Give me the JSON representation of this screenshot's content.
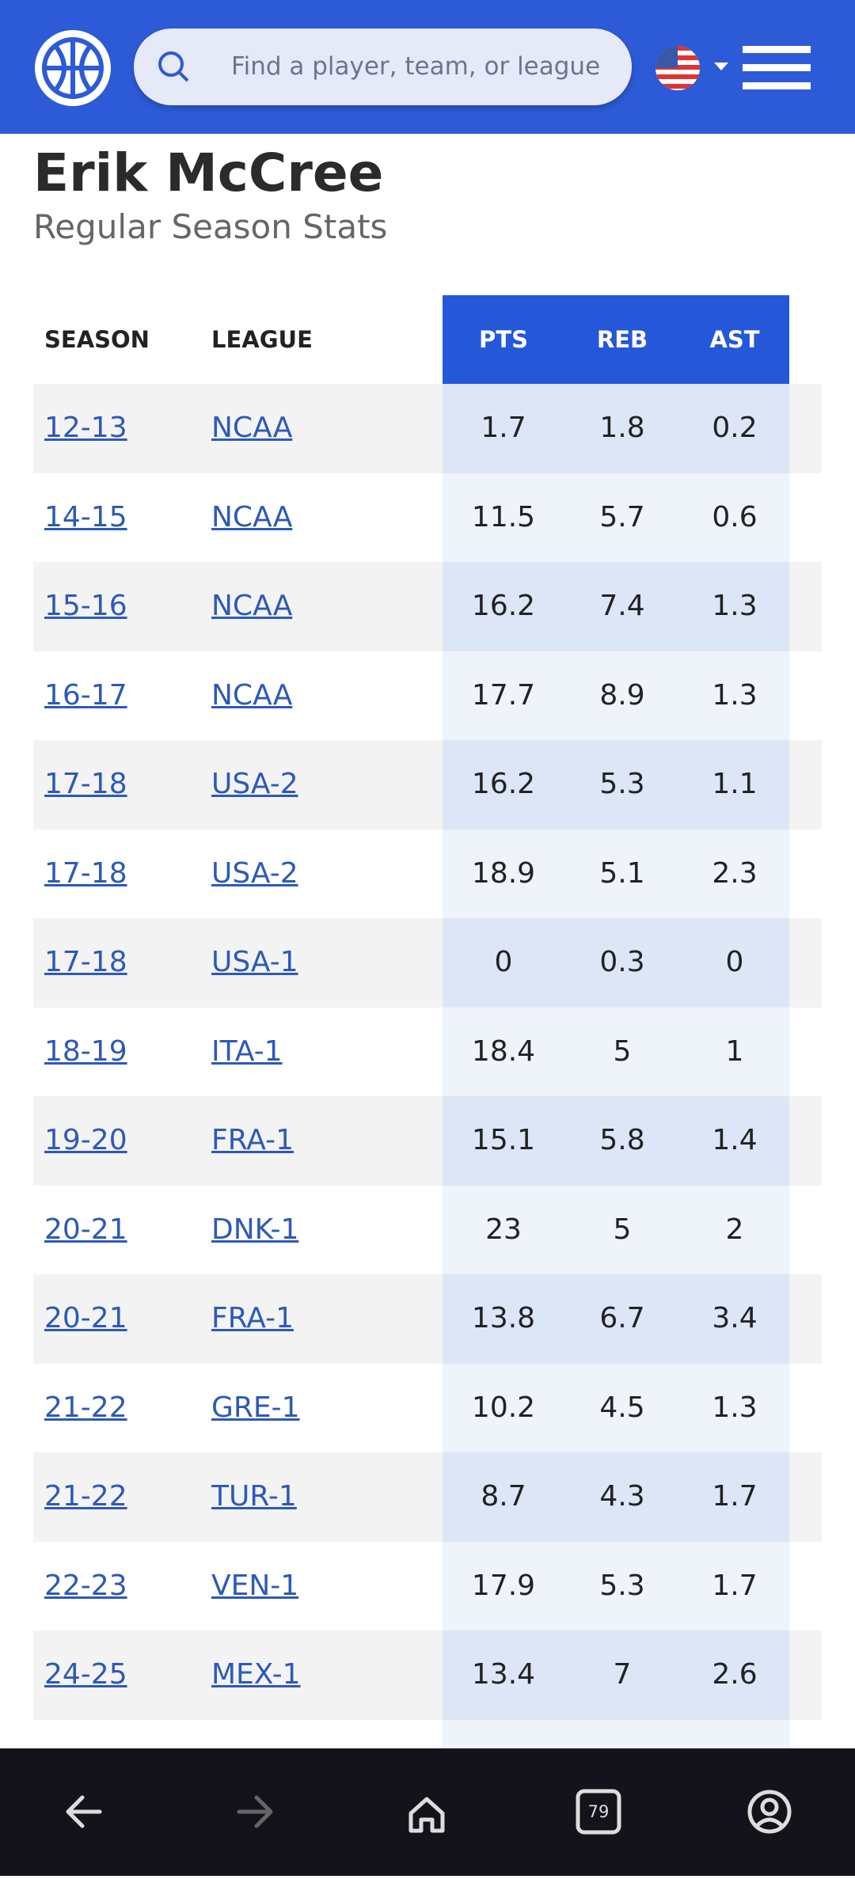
{
  "header": {
    "search_placeholder": "Find a player, team, or league"
  },
  "player": {
    "name": "Erik McCree",
    "subtitle": "Regular Season Stats"
  },
  "table": {
    "columns": [
      "SEASON",
      "LEAGUE",
      "PTS",
      "REB",
      "AST"
    ],
    "rows": [
      [
        "12-13",
        "NCAA",
        1.7,
        1.8,
        0.2
      ],
      [
        "14-15",
        "NCAA",
        11.5,
        5.7,
        0.6
      ],
      [
        "15-16",
        "NCAA",
        16.2,
        7.4,
        1.3
      ],
      [
        "16-17",
        "NCAA",
        17.7,
        8.9,
        1.3
      ],
      [
        "17-18",
        "USA-2",
        16.2,
        5.3,
        1.1
      ],
      [
        "17-18",
        "USA-2",
        18.9,
        5.1,
        2.3
      ],
      [
        "17-18",
        "USA-1",
        0,
        0.3,
        0
      ],
      [
        "18-19",
        "ITA-1",
        18.4,
        5,
        1
      ],
      [
        "19-20",
        "FRA-1",
        15.1,
        5.8,
        1.4
      ],
      [
        "20-21",
        "DNK-1",
        23,
        5,
        2
      ],
      [
        "20-21",
        "FRA-1",
        13.8,
        6.7,
        3.4
      ],
      [
        "21-22",
        "GRE-1",
        10.2,
        4.5,
        1.3
      ],
      [
        "21-22",
        "TUR-1",
        8.7,
        4.3,
        1.7
      ],
      [
        "22-23",
        "VEN-1",
        17.9,
        5.3,
        1.7
      ],
      [
        "24-25",
        "MEX-1",
        13.4,
        7,
        2.6
      ]
    ]
  },
  "nav": {
    "tabs_count": "79"
  }
}
